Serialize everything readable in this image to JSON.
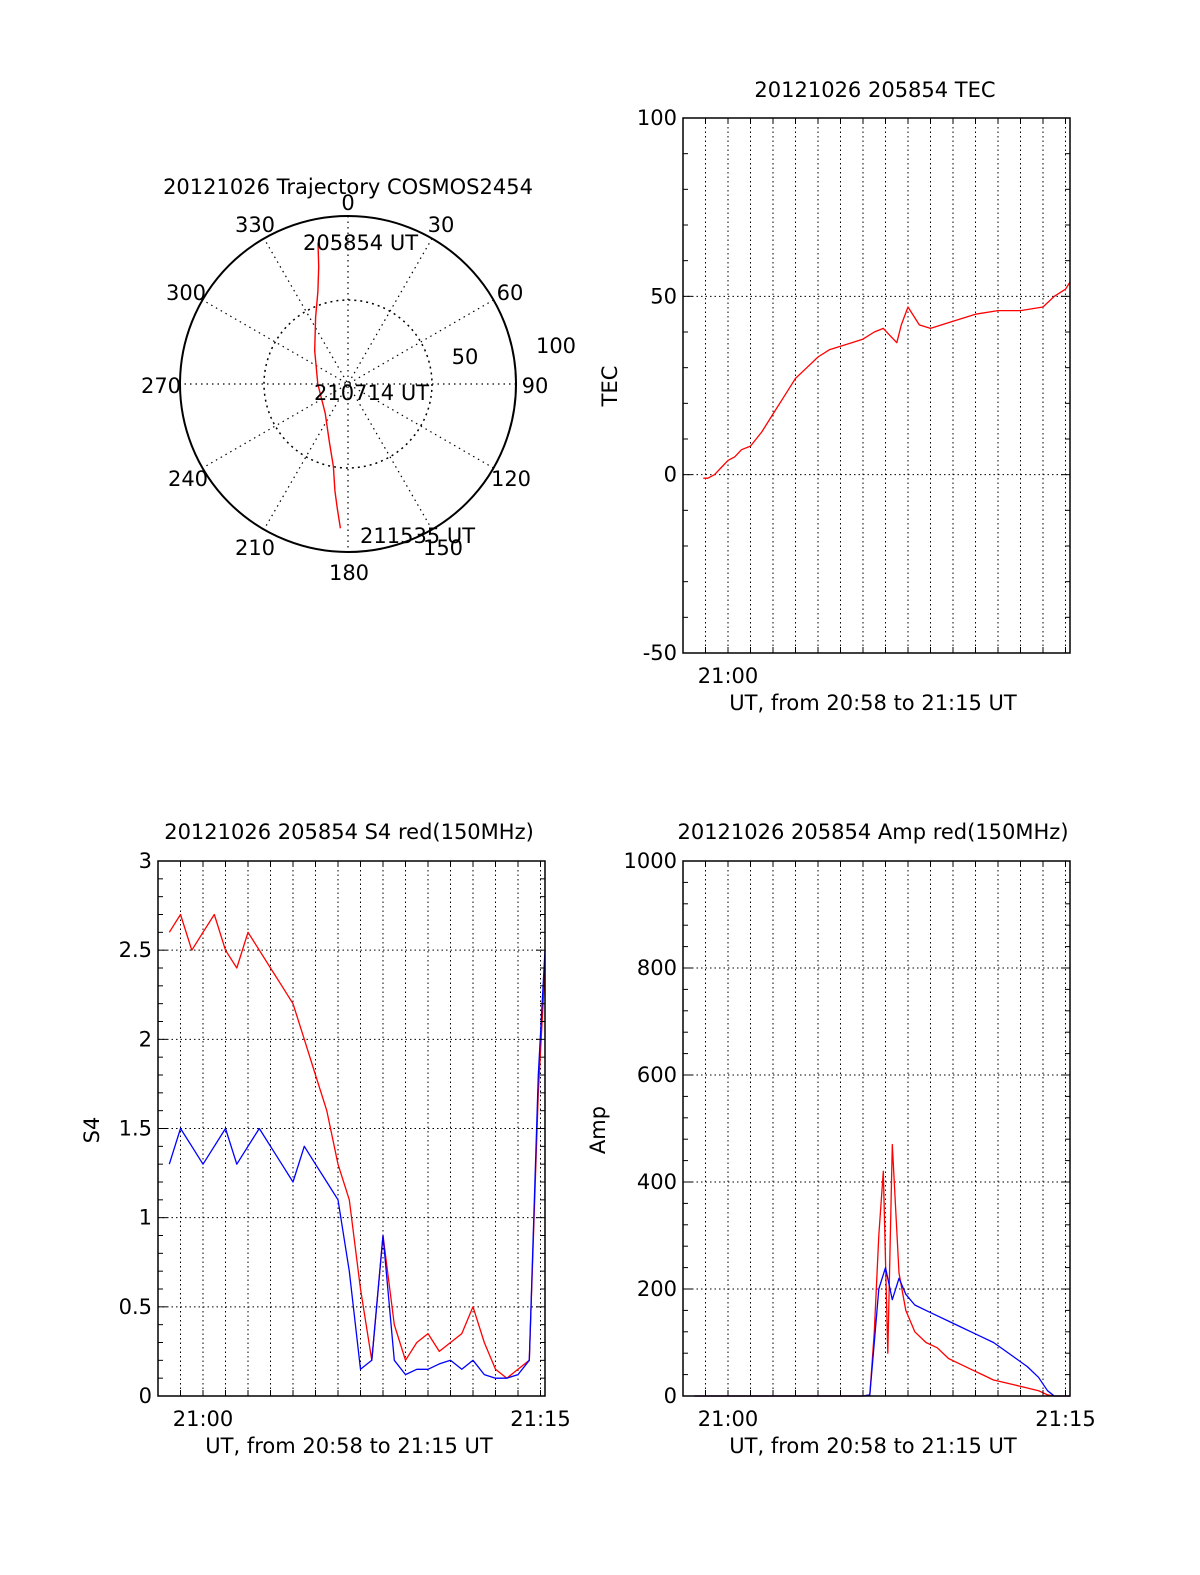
{
  "colors": {
    "red_channel": "#ff0000",
    "blue_channel": "#0000ff",
    "axes": "#000000",
    "grid": "#000000"
  },
  "chart_data": [
    {
      "type": "polar",
      "title": "20121026 Trajectory COSMOS2454",
      "angle_labels": [
        "0",
        "30",
        "60",
        "90",
        "120",
        "150",
        "180",
        "210",
        "240",
        "270",
        "300",
        "330"
      ],
      "radial_labels": [
        "50",
        "100"
      ],
      "rlim": [
        0,
        100
      ],
      "grid": true,
      "annotations": [
        "205854 UT",
        "210714 UT",
        "211535 UT"
      ],
      "series": [
        {
          "color": "#ff0000",
          "points": [
            {
              "az": 348,
              "r": 86
            },
            {
              "az": 346,
              "r": 72
            },
            {
              "az": 342,
              "r": 58
            },
            {
              "az": 334,
              "r": 44
            },
            {
              "az": 315,
              "r": 28
            },
            {
              "az": 270,
              "r": 18
            },
            {
              "az": 218,
              "r": 22
            },
            {
              "az": 198,
              "r": 36
            },
            {
              "az": 190,
              "r": 50
            },
            {
              "az": 187,
              "r": 64
            },
            {
              "az": 185,
              "r": 74
            },
            {
              "az": 183,
              "r": 86
            }
          ]
        }
      ]
    },
    {
      "type": "line",
      "title": "20121026 205854 TEC",
      "xlabel": "UT, from 20:58 to 21:15 UT",
      "ylabel": "TEC",
      "xticks": [
        {
          "v": 2,
          "label": "21:00"
        }
      ],
      "yticks": [
        -50,
        0,
        50,
        100
      ],
      "xlim": [
        0,
        17.2
      ],
      "ylim": [
        -50,
        100
      ],
      "grid": "x",
      "series": [
        {
          "color": "#ff0000",
          "x": [
            0.9,
            1.1,
            1.4,
            1.7,
            2.0,
            2.3,
            2.6,
            3.0,
            3.5,
            4.0,
            4.5,
            5.0,
            5.5,
            6.0,
            6.5,
            7.0,
            7.5,
            8.0,
            8.5,
            8.9,
            9.2,
            9.5,
            9.7,
            10.0,
            10.5,
            11.0,
            12.0,
            13.0,
            14.0,
            15.0,
            16.0,
            16.5,
            17.0,
            17.2
          ],
          "y": [
            -1,
            -1,
            0,
            2,
            4,
            5,
            7,
            8,
            12,
            17,
            22,
            27,
            30,
            33,
            35,
            36,
            37,
            38,
            40,
            41,
            39,
            37,
            42,
            47,
            42,
            41,
            43,
            45,
            46,
            46,
            47,
            50,
            52,
            54
          ]
        }
      ]
    },
    {
      "type": "line",
      "title": "20121026 205854 S4 red(150MHz)",
      "xlabel": "UT, from 20:58 to 21:15 UT",
      "ylabel": "S4",
      "xticks": [
        {
          "v": 2,
          "label": "21:00"
        },
        {
          "v": 17,
          "label": "21:15"
        }
      ],
      "yticks": [
        0,
        0.5,
        1,
        1.5,
        2,
        2.5,
        3
      ],
      "xlim": [
        0,
        17.2
      ],
      "ylim": [
        0,
        3
      ],
      "grid": true,
      "series": [
        {
          "color": "#ff0000",
          "x": [
            0.5,
            1.0,
            1.5,
            2.0,
            2.5,
            3.0,
            3.5,
            4.0,
            4.5,
            5.0,
            5.5,
            6.0,
            6.5,
            7.0,
            7.5,
            8.0,
            8.5,
            9.0,
            9.5,
            10.0,
            10.5,
            11.0,
            11.5,
            12.0,
            12.5,
            13.0,
            13.5,
            14.0,
            14.5,
            15.0,
            15.5,
            16.0,
            16.5,
            16.9,
            17.2
          ],
          "y": [
            2.6,
            2.7,
            2.5,
            2.6,
            2.7,
            2.5,
            2.4,
            2.6,
            2.5,
            2.4,
            2.3,
            2.2,
            2.0,
            1.8,
            1.6,
            1.3,
            1.1,
            0.6,
            0.2,
            0.9,
            0.4,
            0.2,
            0.3,
            0.35,
            0.25,
            0.3,
            0.35,
            0.5,
            0.3,
            0.15,
            0.1,
            0.15,
            0.2,
            1.7,
            2.4
          ]
        },
        {
          "color": "#0000ff",
          "x": [
            0.5,
            1.0,
            1.5,
            2.0,
            2.5,
            3.0,
            3.5,
            4.0,
            4.5,
            5.0,
            5.5,
            6.0,
            6.5,
            7.0,
            7.5,
            8.0,
            8.5,
            9.0,
            9.5,
            10.0,
            10.5,
            11.0,
            11.5,
            12.0,
            12.5,
            13.0,
            13.5,
            14.0,
            14.5,
            15.0,
            15.5,
            16.0,
            16.5,
            16.9,
            17.2
          ],
          "y": [
            1.3,
            1.5,
            1.4,
            1.3,
            1.4,
            1.5,
            1.3,
            1.4,
            1.5,
            1.4,
            1.3,
            1.2,
            1.4,
            1.3,
            1.2,
            1.1,
            0.7,
            0.15,
            0.2,
            0.9,
            0.2,
            0.12,
            0.15,
            0.15,
            0.18,
            0.2,
            0.15,
            0.2,
            0.12,
            0.1,
            0.1,
            0.12,
            0.2,
            1.8,
            2.5
          ]
        }
      ]
    },
    {
      "type": "line",
      "title": "20121026 205854 Amp red(150MHz)",
      "xlabel": "UT, from 20:58 to 21:15 UT",
      "ylabel": "Amp",
      "xticks": [
        {
          "v": 2,
          "label": "21:00"
        },
        {
          "v": 17,
          "label": "21:15"
        }
      ],
      "yticks": [
        0,
        200,
        400,
        600,
        800,
        1000
      ],
      "xlim": [
        0,
        17.2
      ],
      "ylim": [
        0,
        1000
      ],
      "grid": true,
      "series": [
        {
          "color": "#ff0000",
          "x": [
            0.5,
            3.0,
            6.0,
            8.0,
            8.3,
            8.5,
            8.7,
            8.9,
            9.1,
            9.3,
            9.6,
            9.9,
            10.3,
            10.8,
            11.3,
            11.8,
            12.3,
            12.8,
            13.3,
            13.8,
            14.3,
            14.8,
            15.3,
            15.8,
            16.2,
            16.5,
            17.2
          ],
          "y": [
            0,
            0,
            0,
            0,
            2,
            120,
            300,
            420,
            80,
            470,
            230,
            160,
            120,
            100,
            90,
            70,
            60,
            50,
            40,
            30,
            25,
            20,
            15,
            10,
            2,
            0,
            0
          ]
        },
        {
          "color": "#0000ff",
          "x": [
            0.5,
            3.0,
            6.0,
            8.0,
            8.3,
            8.5,
            8.7,
            9.0,
            9.3,
            9.6,
            9.9,
            10.3,
            10.8,
            11.3,
            11.8,
            12.3,
            12.8,
            13.3,
            13.8,
            14.3,
            14.8,
            15.3,
            15.8,
            16.2,
            16.5,
            17.2
          ],
          "y": [
            0,
            0,
            0,
            0,
            2,
            100,
            200,
            240,
            180,
            220,
            190,
            170,
            160,
            150,
            140,
            130,
            120,
            110,
            100,
            85,
            70,
            55,
            35,
            10,
            0,
            0
          ]
        }
      ]
    }
  ]
}
